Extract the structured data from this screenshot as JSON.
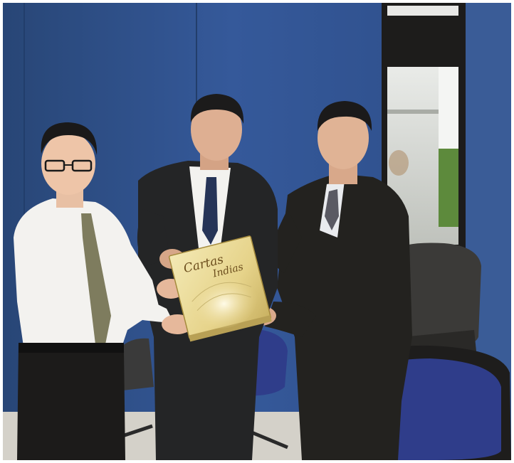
{
  "photo": {
    "book_cover": {
      "title_line1": "Cartas",
      "title_line2": "Indias"
    },
    "colors": {
      "wall": "#2e4f8a",
      "wall_highlight": "#3b63a8",
      "floor": "#d9d6cf",
      "suit_dark": "#23221f",
      "shirt_white": "#f3f2ef",
      "chair_blue": "#2f3d8a",
      "chair_grey": "#3b3a38",
      "book_gold": "#e9d992"
    }
  }
}
